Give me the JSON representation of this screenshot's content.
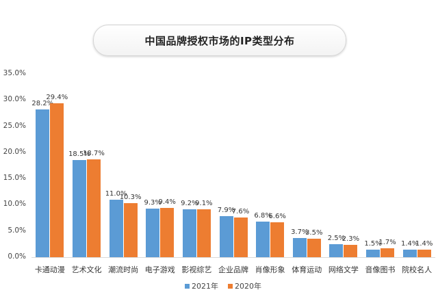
{
  "title": "中国品牌授权市场的IP类型分布",
  "legend": [
    {
      "label": "2021年",
      "color": "#5b9bd5"
    },
    {
      "label": "2020年",
      "color": "#ed7d31"
    }
  ],
  "chart_data": {
    "type": "bar",
    "title": "中国品牌授权市场的IP类型分布",
    "xlabel": "",
    "ylabel": "",
    "ylim": [
      0,
      35
    ],
    "yticks": [
      "0.0%",
      "5.0%",
      "10.0%",
      "15.0%",
      "20.0%",
      "25.0%",
      "30.0%",
      "35.0%"
    ],
    "grid": false,
    "legend_position": "bottom",
    "categories": [
      "卡通动漫",
      "艺术文化",
      "潮流时尚",
      "电子游戏",
      "影视综艺",
      "企业品牌",
      "肖像形象",
      "体育运动",
      "网络文学",
      "音像图书",
      "院校名人"
    ],
    "series": [
      {
        "name": "2021年",
        "color": "#5b9bd5",
        "values": [
          28.2,
          18.5,
          11.0,
          9.3,
          9.2,
          7.9,
          6.8,
          3.7,
          2.5,
          1.5,
          1.4
        ],
        "labels": [
          "28.2%",
          "18.5%",
          "11.0%",
          "9.3%",
          "9.2%",
          "7.9%",
          "6.8%",
          "3.7%",
          "2.5%",
          "1.5%",
          "1.4%"
        ]
      },
      {
        "name": "2020年",
        "color": "#ed7d31",
        "values": [
          29.4,
          18.7,
          10.3,
          9.4,
          9.1,
          7.6,
          6.6,
          3.5,
          2.3,
          1.7,
          1.4
        ],
        "labels": [
          "29.4%",
          "18.7%",
          "10.3%",
          "9.4%",
          "9.1%",
          "7.6%",
          "6.6%",
          "3.5%",
          "2.3%",
          "1.7%",
          "1.4%"
        ]
      }
    ]
  }
}
